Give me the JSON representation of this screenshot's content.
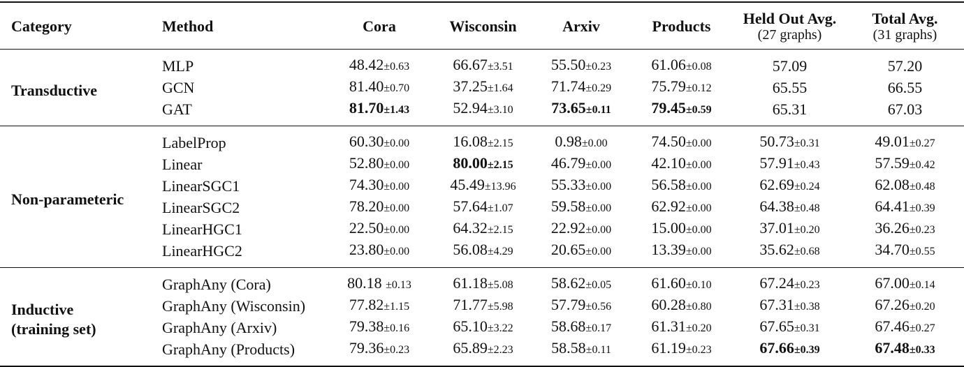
{
  "headers": [
    {
      "label": "Category"
    },
    {
      "label": "Method"
    },
    {
      "label": "Cora"
    },
    {
      "label": "Wisconsin"
    },
    {
      "label": "Arxiv"
    },
    {
      "label": "Products"
    },
    {
      "label": "Held Out Avg.",
      "sub": "(27 graphs)"
    },
    {
      "label": "Total Avg.",
      "sub": "(31 graphs)"
    }
  ],
  "groups": [
    {
      "category": [
        "Transductive"
      ],
      "rows": [
        {
          "method": "MLP",
          "cells": [
            {
              "v": "48.42",
              "s": "±0.63"
            },
            {
              "v": "66.67",
              "s": "±3.51"
            },
            {
              "v": "55.50",
              "s": "±0.23"
            },
            {
              "v": "61.06",
              "s": "±0.08"
            },
            {
              "v": "57.09"
            },
            {
              "v": "57.20"
            }
          ]
        },
        {
          "method": "GCN",
          "cells": [
            {
              "v": "81.40",
              "s": "±0.70"
            },
            {
              "v": "37.25",
              "s": "±1.64"
            },
            {
              "v": "71.74",
              "s": "±0.29"
            },
            {
              "v": "75.79",
              "s": "±0.12"
            },
            {
              "v": "65.55"
            },
            {
              "v": "66.55"
            }
          ]
        },
        {
          "method": "GAT",
          "cells": [
            {
              "v": "81.70",
              "s": "±1.43",
              "bold": true
            },
            {
              "v": "52.94",
              "s": "±3.10"
            },
            {
              "v": "73.65",
              "s": "±0.11",
              "bold": true
            },
            {
              "v": "79.45",
              "s": "±0.59",
              "bold": true
            },
            {
              "v": "65.31"
            },
            {
              "v": "67.03"
            }
          ]
        }
      ]
    },
    {
      "category": [
        "Non-parameteric"
      ],
      "rows": [
        {
          "method": "LabelProp",
          "cells": [
            {
              "v": "60.30",
              "s": "±0.00"
            },
            {
              "v": "16.08",
              "s": "±2.15"
            },
            {
              "v": "0.98",
              "s": "±0.00"
            },
            {
              "v": "74.50",
              "s": "±0.00"
            },
            {
              "v": "50.73",
              "s": "±0.31"
            },
            {
              "v": "49.01",
              "s": "±0.27"
            }
          ]
        },
        {
          "method": "Linear",
          "cells": [
            {
              "v": "52.80",
              "s": "±0.00"
            },
            {
              "v": "80.00",
              "s": "±2.15",
              "bold": true
            },
            {
              "v": "46.79",
              "s": "±0.00"
            },
            {
              "v": "42.10",
              "s": "±0.00"
            },
            {
              "v": "57.91",
              "s": "±0.43"
            },
            {
              "v": "57.59",
              "s": "±0.42"
            }
          ]
        },
        {
          "method": "LinearSGC1",
          "cells": [
            {
              "v": "74.30",
              "s": "±0.00"
            },
            {
              "v": "45.49",
              "s": "±13.96"
            },
            {
              "v": "55.33",
              "s": "±0.00"
            },
            {
              "v": "56.58",
              "s": "±0.00"
            },
            {
              "v": "62.69",
              "s": "±0.24"
            },
            {
              "v": "62.08",
              "s": "±0.48"
            }
          ]
        },
        {
          "method": "LinearSGC2",
          "cells": [
            {
              "v": "78.20",
              "s": "±0.00"
            },
            {
              "v": "57.64",
              "s": "±1.07"
            },
            {
              "v": "59.58",
              "s": "±0.00"
            },
            {
              "v": "62.92",
              "s": "±0.00"
            },
            {
              "v": "64.38",
              "s": "±0.48"
            },
            {
              "v": "64.41",
              "s": "±0.39"
            }
          ]
        },
        {
          "method": "LinearHGC1",
          "cells": [
            {
              "v": "22.50",
              "s": "±0.00"
            },
            {
              "v": "64.32",
              "s": "±2.15"
            },
            {
              "v": "22.92",
              "s": "±0.00"
            },
            {
              "v": "15.00",
              "s": "±0.00"
            },
            {
              "v": "37.01",
              "s": "±0.20"
            },
            {
              "v": "36.26",
              "s": "±0.23"
            }
          ]
        },
        {
          "method": "LinearHGC2",
          "cells": [
            {
              "v": "23.80",
              "s": "±0.00"
            },
            {
              "v": "56.08",
              "s": "±4.29"
            },
            {
              "v": "20.65",
              "s": "±0.00"
            },
            {
              "v": "13.39",
              "s": "±0.00"
            },
            {
              "v": "35.62",
              "s": "±0.68"
            },
            {
              "v": "34.70",
              "s": "±0.55"
            }
          ]
        }
      ]
    },
    {
      "category": [
        "Inductive",
        "(training set)"
      ],
      "rows": [
        {
          "method": "GraphAny (Cora)",
          "cells": [
            {
              "v": "80.18 ",
              "s": "±0.13"
            },
            {
              "v": "61.18",
              "s": "±5.08"
            },
            {
              "v": "58.62",
              "s": "±0.05"
            },
            {
              "v": "61.60",
              "s": "±0.10"
            },
            {
              "v": "67.24",
              "s": "±0.23"
            },
            {
              "v": "67.00",
              "s": "±0.14"
            }
          ]
        },
        {
          "method": "GraphAny (Wisconsin)",
          "cells": [
            {
              "v": "77.82",
              "s": "±1.15"
            },
            {
              "v": "71.77",
              "s": "±5.98"
            },
            {
              "v": "57.79",
              "s": "±0.56"
            },
            {
              "v": "60.28",
              "s": "±0.80"
            },
            {
              "v": "67.31",
              "s": "±0.38"
            },
            {
              "v": "67.26",
              "s": "±0.20"
            }
          ]
        },
        {
          "method": "GraphAny (Arxiv)",
          "cells": [
            {
              "v": "79.38",
              "s": "±0.16"
            },
            {
              "v": "65.10",
              "s": "±3.22"
            },
            {
              "v": "58.68",
              "s": "±0.17"
            },
            {
              "v": "61.31",
              "s": "±0.20"
            },
            {
              "v": "67.65",
              "s": "±0.31"
            },
            {
              "v": "67.46",
              "s": "±0.27"
            }
          ]
        },
        {
          "method": "GraphAny (Products)",
          "cells": [
            {
              "v": "79.36",
              "s": "±0.23"
            },
            {
              "v": "65.89",
              "s": "±2.23"
            },
            {
              "v": "58.58",
              "s": "±0.11"
            },
            {
              "v": "61.19",
              "s": "±0.23"
            },
            {
              "v": "67.66",
              "s": "±0.39",
              "bold": true
            },
            {
              "v": "67.48",
              "s": "±0.33",
              "bold": true
            }
          ]
        }
      ]
    }
  ]
}
